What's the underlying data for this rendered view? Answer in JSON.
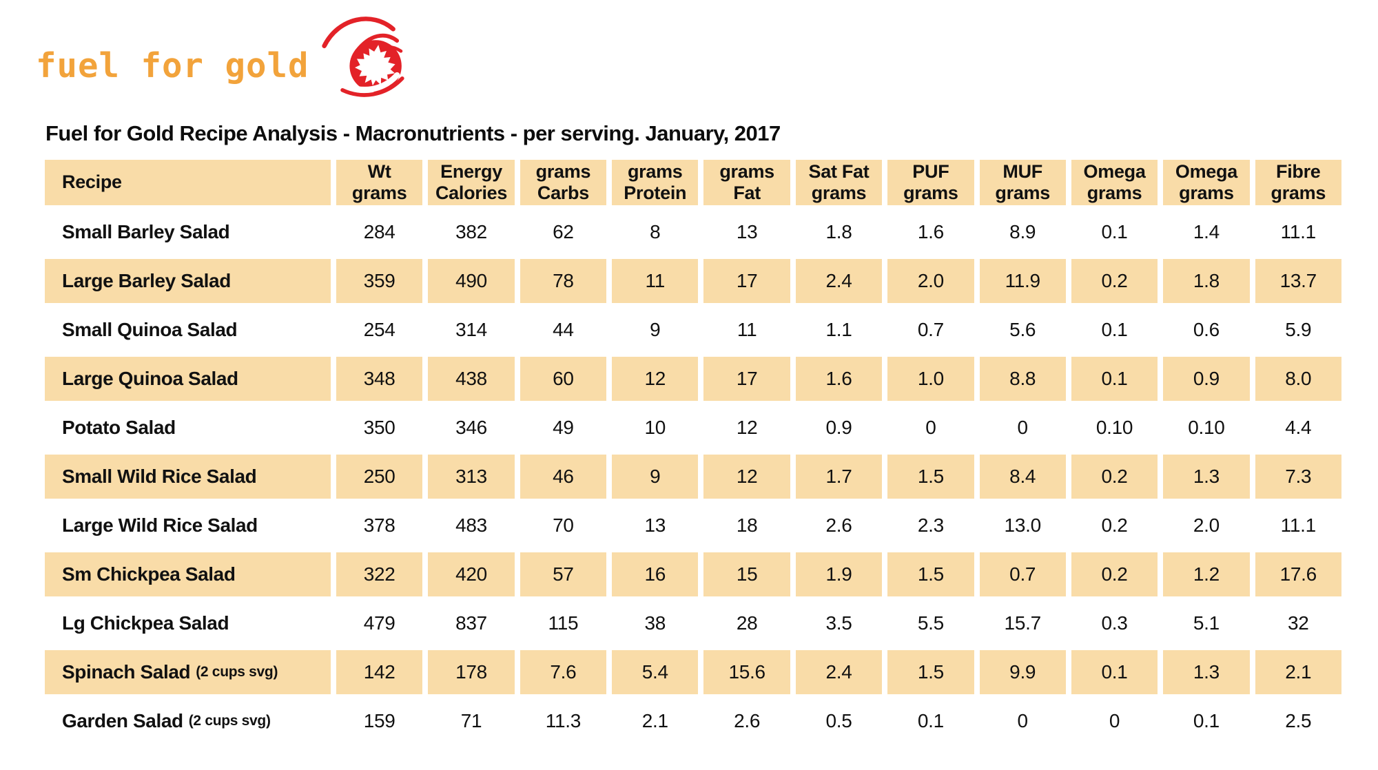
{
  "logo": {
    "text": "fuel for gold",
    "icon": "maple-leaf-comet",
    "gold_color": "#F2A33B",
    "red_color": "#E32228"
  },
  "title": "Fuel for Gold Recipe Analysis - Macronutrients - per serving. January, 2017",
  "table": {
    "row_accent_color": "#F9DCA8",
    "columns": [
      {
        "key": "recipe",
        "line1": "Recipe",
        "line2": ""
      },
      {
        "key": "wt",
        "line1": "Wt",
        "line2": "grams"
      },
      {
        "key": "energy",
        "line1": "Energy",
        "line2": "Calories"
      },
      {
        "key": "carbs",
        "line1": "grams",
        "line2": "Carbs"
      },
      {
        "key": "protein",
        "line1": "grams",
        "line2": "Protein"
      },
      {
        "key": "fat",
        "line1": "grams",
        "line2": "Fat"
      },
      {
        "key": "satfat",
        "line1": "Sat Fat",
        "line2": "grams"
      },
      {
        "key": "puf",
        "line1": "PUF",
        "line2": "grams"
      },
      {
        "key": "muf",
        "line1": "MUF",
        "line2": "grams"
      },
      {
        "key": "omega-a",
        "line1": "Omega",
        "line2": "grams"
      },
      {
        "key": "omega-b",
        "line1": "Omega",
        "line2": "grams"
      },
      {
        "key": "fibre",
        "line1": "Fibre",
        "line2": "grams"
      }
    ],
    "rows": [
      {
        "name": "Small Barley Salad",
        "suffix": "",
        "values": [
          "284",
          "382",
          "62",
          "8",
          "13",
          "1.8",
          "1.6",
          "8.9",
          "0.1",
          "1.4",
          "11.1"
        ]
      },
      {
        "name": "Large Barley Salad",
        "suffix": "",
        "values": [
          "359",
          "490",
          "78",
          "11",
          "17",
          "2.4",
          "2.0",
          "11.9",
          "0.2",
          "1.8",
          "13.7"
        ]
      },
      {
        "name": "Small Quinoa Salad",
        "suffix": "",
        "values": [
          "254",
          "314",
          "44",
          "9",
          "11",
          "1.1",
          "0.7",
          "5.6",
          "0.1",
          "0.6",
          "5.9"
        ]
      },
      {
        "name": "Large Quinoa Salad",
        "suffix": "",
        "values": [
          "348",
          "438",
          "60",
          "12",
          "17",
          "1.6",
          "1.0",
          "8.8",
          "0.1",
          "0.9",
          "8.0"
        ]
      },
      {
        "name": "Potato Salad",
        "suffix": "",
        "values": [
          "350",
          "346",
          "49",
          "10",
          "12",
          "0.9",
          "0",
          "0",
          "0.10",
          "0.10",
          "4.4"
        ]
      },
      {
        "name": "Small Wild Rice Salad",
        "suffix": "",
        "values": [
          "250",
          "313",
          "46",
          "9",
          "12",
          "1.7",
          "1.5",
          "8.4",
          "0.2",
          "1.3",
          "7.3"
        ]
      },
      {
        "name": "Large Wild Rice Salad",
        "suffix": "",
        "values": [
          "378",
          "483",
          "70",
          "13",
          "18",
          "2.6",
          "2.3",
          "13.0",
          "0.2",
          "2.0",
          "11.1"
        ]
      },
      {
        "name": "Sm Chickpea Salad",
        "suffix": "",
        "values": [
          "322",
          "420",
          "57",
          "16",
          "15",
          "1.9",
          "1.5",
          "0.7",
          "0.2",
          "1.2",
          "17.6"
        ]
      },
      {
        "name": "Lg Chickpea Salad",
        "suffix": "",
        "values": [
          "479",
          "837",
          "115",
          "38",
          "28",
          "3.5",
          "5.5",
          "15.7",
          "0.3",
          "5.1",
          "32"
        ]
      },
      {
        "name": "Spinach Salad",
        "suffix": "(2 cups svg)",
        "values": [
          "142",
          "178",
          "7.6",
          "5.4",
          "15.6",
          "2.4",
          "1.5",
          "9.9",
          "0.1",
          "1.3",
          "2.1"
        ]
      },
      {
        "name": "Garden Salad",
        "suffix": "(2 cups svg)",
        "values": [
          "159",
          "71",
          "11.3",
          "2.1",
          "2.6",
          "0.5",
          "0.1",
          "0",
          "0",
          "0.1",
          "2.5"
        ]
      }
    ]
  }
}
